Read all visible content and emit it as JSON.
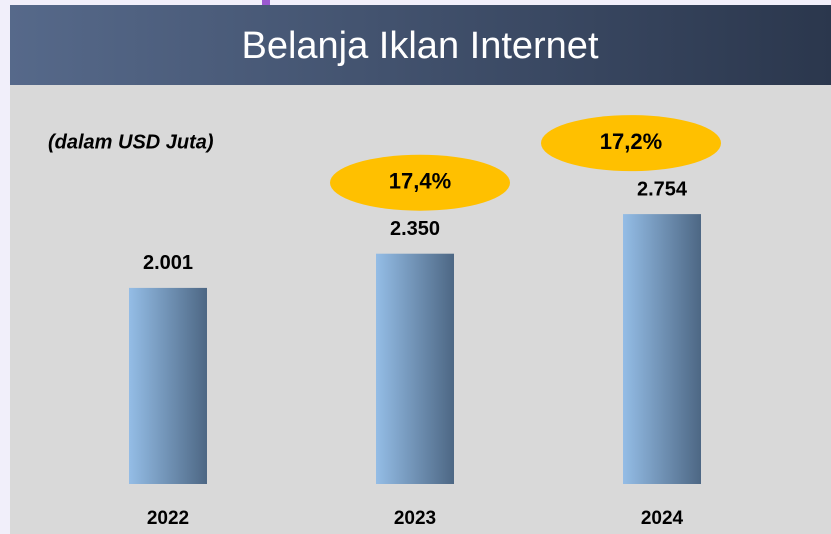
{
  "chart_data": {
    "type": "bar",
    "title": "Belanja Iklan Internet",
    "subtitle": "(dalam USD Juta)",
    "categories": [
      "2022",
      "2023",
      "2024"
    ],
    "values": [
      2001,
      2350,
      2754
    ],
    "value_labels": [
      "2.001",
      "2.350",
      "2.754"
    ],
    "growth": {
      "values": [
        null,
        17.4,
        17.2
      ],
      "value_labels": [
        null,
        "17,4%",
        "17,2%"
      ],
      "color": "#ffc000"
    },
    "color": "#8fb8e0",
    "ylim": [
      0,
      3000
    ]
  }
}
